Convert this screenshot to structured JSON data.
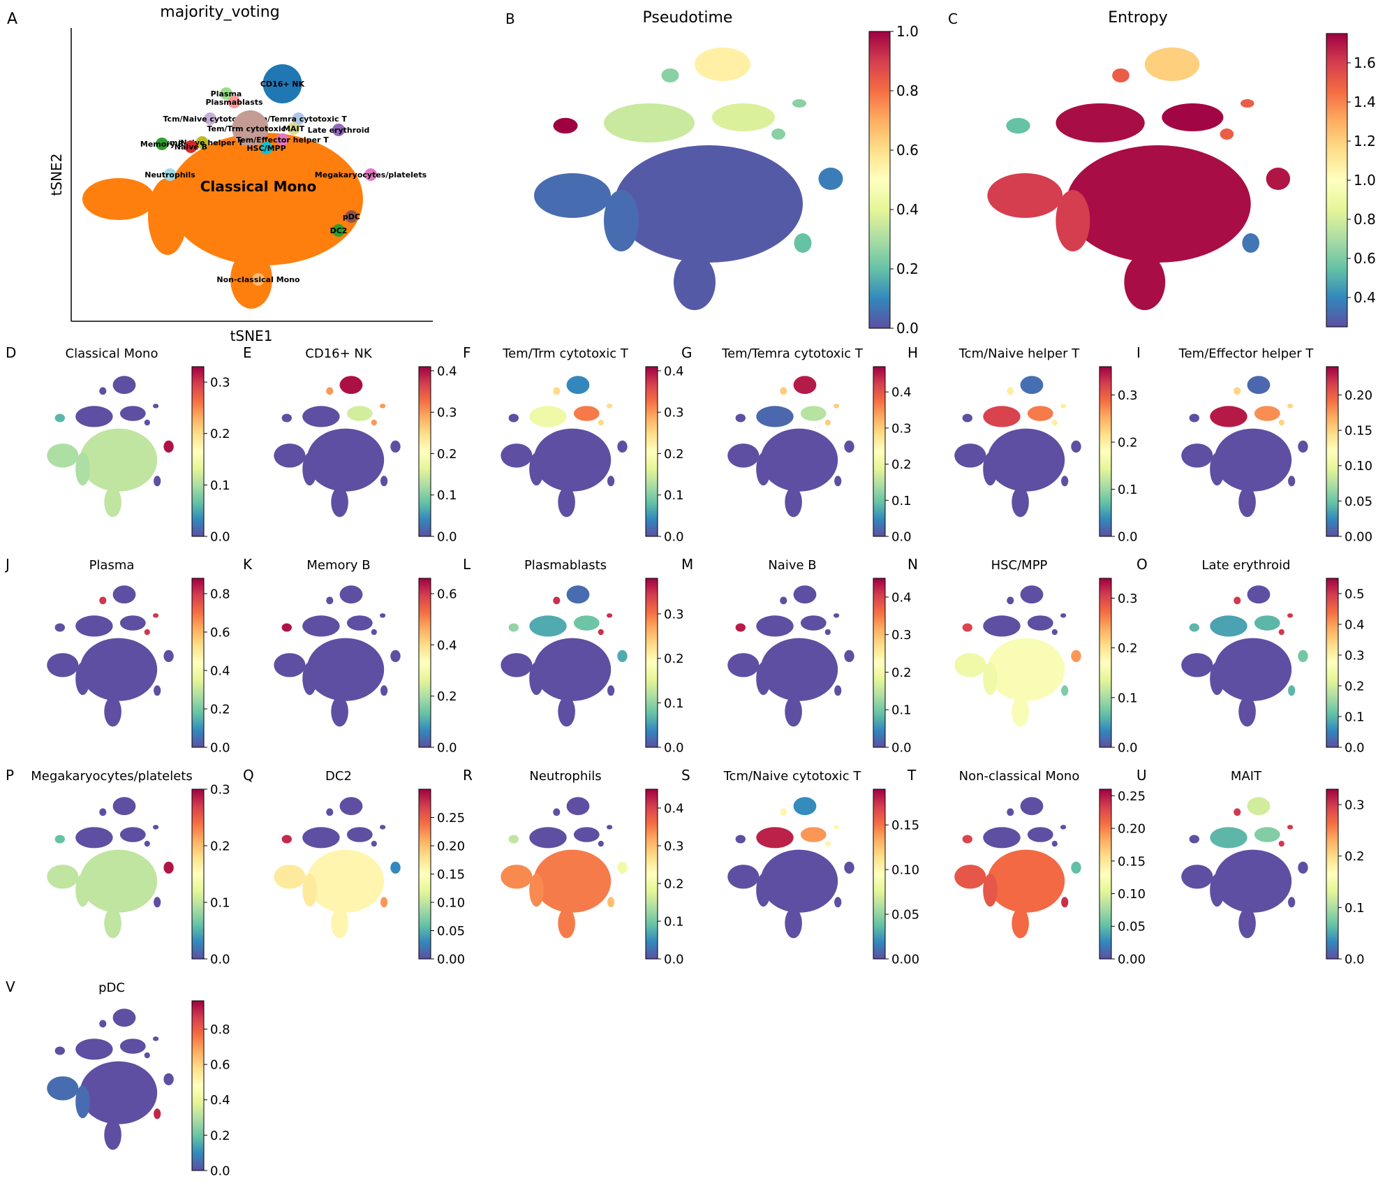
{
  "figure": {
    "colormap": "Spectral_r",
    "colormap_stops": [
      "#5e4fa2",
      "#3288bd",
      "#66c2a5",
      "#abdda4",
      "#e6f598",
      "#ffffbf",
      "#fee08b",
      "#fdae61",
      "#f46d43",
      "#d53e4f",
      "#9e0142"
    ],
    "background_color": "#ffffff",
    "point_colors": {
      "Classical Mono": "#ff7f0e",
      "CD16+ NK": "#1f77b4",
      "Plasma": "#98df8a",
      "Plasmablasts": "#ff9896",
      "Tcm/Naive cytotoxic T": "#c5b0d5",
      "Tem/Trm cytotoxic T": "#c49c94",
      "Tem/Temra cytotoxic T": "#aec7e8",
      "MAIT": "#dbdb8d",
      "Late erythroid": "#9467bd",
      "Tcm/Naive helper T": "#bcbd22",
      "Tem/Effector helper T": "#e377c2",
      "HSC/MPP": "#17becf",
      "Memory B": "#2ca02c",
      "Naive B": "#d62728",
      "Neutrophils": "#9edae5",
      "Megakaryocytes/platelets": "#e377c2",
      "pDC": "#8c564b",
      "DC2": "#2ca02c",
      "Non-classical Mono": "#ffbb78"
    }
  },
  "chart_data": [
    {
      "panel": "A",
      "type": "scatter",
      "title": "majority_voting",
      "xlabel": "tSNE1",
      "ylabel": "tSNE2",
      "clusters": [
        {
          "label": "Classical Mono",
          "x": 0.0,
          "y": 0.0
        },
        {
          "label": "CD16+ NK",
          "x": 0.15,
          "y": 0.75
        },
        {
          "label": "Plasma",
          "x": -0.2,
          "y": 0.68
        },
        {
          "label": "Plasmablasts",
          "x": -0.15,
          "y": 0.62
        },
        {
          "label": "Tcm/Naive cytotoxic T",
          "x": -0.3,
          "y": 0.5
        },
        {
          "label": "Tem/Temra cytotoxic T",
          "x": 0.25,
          "y": 0.5
        },
        {
          "label": "Tem/Trm cytotoxic T",
          "x": -0.05,
          "y": 0.43
        },
        {
          "label": "MAIT",
          "x": 0.22,
          "y": 0.43
        },
        {
          "label": "Late erythroid",
          "x": 0.5,
          "y": 0.42
        },
        {
          "label": "Tem/Effector helper T",
          "x": 0.15,
          "y": 0.35
        },
        {
          "label": "Tcm/Naive helper T",
          "x": -0.35,
          "y": 0.33
        },
        {
          "label": "Memory B",
          "x": -0.6,
          "y": 0.32
        },
        {
          "label": "Naive B",
          "x": -0.42,
          "y": 0.3
        },
        {
          "label": "HSC/MPP",
          "x": 0.05,
          "y": 0.29
        },
        {
          "label": "Neutrophils",
          "x": -0.55,
          "y": 0.1
        },
        {
          "label": "Megakaryocytes/platelets",
          "x": 0.7,
          "y": 0.1
        },
        {
          "label": "pDC",
          "x": 0.58,
          "y": -0.2
        },
        {
          "label": "DC2",
          "x": 0.5,
          "y": -0.3
        },
        {
          "label": "Non-classical Mono",
          "x": 0.0,
          "y": -0.65
        }
      ]
    },
    {
      "panel": "B",
      "type": "scatter",
      "title": "Pseudotime",
      "colorbar_ticks": [
        "0.0",
        "0.2",
        "0.4",
        "0.6",
        "0.8",
        "1.0"
      ],
      "clim": [
        0,
        1.0
      ],
      "color_values": {
        "main": 0.02,
        "left": 0.05,
        "right": 0.08,
        "upper_left": 0.35,
        "upper_mid": 0.38,
        "top": 0.55,
        "far_left": 1.0,
        "small_upper": 0.25,
        "low_right": 0.2
      }
    },
    {
      "panel": "C",
      "type": "scatter",
      "title": "Entropy",
      "colorbar_ticks": [
        "0.4",
        "0.6",
        "0.8",
        "1.0",
        "1.2",
        "1.4",
        "1.6"
      ],
      "clim": [
        0.25,
        1.75
      ],
      "color_values": {
        "main": 1.72,
        "left": 1.6,
        "right": 1.7,
        "upper_left": 1.72,
        "upper_mid": 1.74,
        "top": 1.2,
        "far_left": 0.55,
        "small_upper": 1.5,
        "low_right": 0.35
      }
    },
    {
      "panel": "D",
      "type": "scatter",
      "title": "Classical Mono",
      "colorbar_ticks": [
        "0.0",
        "0.1",
        "0.2",
        "0.3"
      ],
      "clim": [
        0,
        0.33
      ],
      "color_values": {
        "main": 0.11,
        "left": 0.1,
        "right": 0.32,
        "upper_left": 0.0,
        "upper_mid": 0.0,
        "top": 0.0,
        "far_left": 0.06,
        "small_upper": 0.0,
        "low_right": 0.0
      }
    },
    {
      "panel": "E",
      "type": "scatter",
      "title": "CD16+ NK",
      "colorbar_ticks": [
        "0.0",
        "0.1",
        "0.2",
        "0.3",
        "0.4"
      ],
      "clim": [
        0,
        0.41
      ],
      "color_values": {
        "main": 0.0,
        "left": 0.0,
        "right": 0.0,
        "upper_left": 0.0,
        "upper_mid": 0.15,
        "top": 0.4,
        "far_left": 0.0,
        "small_upper": 0.3,
        "low_right": 0.0
      }
    },
    {
      "panel": "F",
      "type": "scatter",
      "title": "Tem/Trm cytotoxic T",
      "colorbar_ticks": [
        "0.0",
        "0.1",
        "0.2",
        "0.3",
        "0.4"
      ],
      "clim": [
        0,
        0.41
      ],
      "color_values": {
        "main": 0.0,
        "left": 0.0,
        "right": 0.0,
        "upper_left": 0.18,
        "upper_mid": 0.32,
        "top": 0.04,
        "far_left": 0.0,
        "small_upper": 0.25,
        "low_right": 0.0
      }
    },
    {
      "panel": "G",
      "type": "scatter",
      "title": "Tem/Temra cytotoxic T",
      "colorbar_ticks": [
        "0.0",
        "0.1",
        "0.2",
        "0.3",
        "0.4"
      ],
      "clim": [
        0,
        0.47
      ],
      "color_values": {
        "main": 0.0,
        "left": 0.0,
        "right": 0.0,
        "upper_left": 0.02,
        "upper_mid": 0.15,
        "top": 0.45,
        "far_left": 0.0,
        "small_upper": 0.3,
        "low_right": 0.0
      }
    },
    {
      "panel": "H",
      "type": "scatter",
      "title": "Tcm/Naive helper T",
      "colorbar_ticks": [
        "0.0",
        "0.1",
        "0.2",
        "0.3"
      ],
      "clim": [
        0,
        0.36
      ],
      "color_values": {
        "main": 0.0,
        "left": 0.0,
        "right": 0.0,
        "upper_left": 0.32,
        "upper_mid": 0.28,
        "top": 0.02,
        "far_left": 0.0,
        "small_upper": 0.2,
        "low_right": 0.0
      }
    },
    {
      "panel": "I",
      "type": "scatter",
      "title": "Tem/Effector helper T",
      "colorbar_ticks": [
        "0.00",
        "0.05",
        "0.10",
        "0.15",
        "0.20"
      ],
      "clim": [
        0,
        0.24
      ],
      "color_values": {
        "main": 0.0,
        "left": 0.0,
        "right": 0.0,
        "upper_left": 0.23,
        "upper_mid": 0.18,
        "top": 0.01,
        "far_left": 0.0,
        "small_upper": 0.15,
        "low_right": 0.0
      }
    },
    {
      "panel": "J",
      "type": "scatter",
      "title": "Plasma",
      "colorbar_ticks": [
        "0.0",
        "0.2",
        "0.4",
        "0.6",
        "0.8"
      ],
      "clim": [
        0,
        0.88
      ],
      "color_values": {
        "main": 0.0,
        "left": 0.0,
        "right": 0.0,
        "upper_left": 0.0,
        "upper_mid": 0.0,
        "top": 0.0,
        "far_left": 0.0,
        "small_upper": 0.8,
        "low_right": 0.0
      }
    },
    {
      "panel": "K",
      "type": "scatter",
      "title": "Memory B",
      "colorbar_ticks": [
        "0.0",
        "0.2",
        "0.4",
        "0.6"
      ],
      "clim": [
        0,
        0.66
      ],
      "color_values": {
        "main": 0.0,
        "left": 0.0,
        "right": 0.0,
        "upper_left": 0.0,
        "upper_mid": 0.0,
        "top": 0.0,
        "far_left": 0.64,
        "small_upper": 0.0,
        "low_right": 0.0
      }
    },
    {
      "panel": "L",
      "type": "scatter",
      "title": "Plasmablasts",
      "colorbar_ticks": [
        "0.0",
        "0.1",
        "0.2",
        "0.3"
      ],
      "clim": [
        0,
        0.38
      ],
      "color_values": {
        "main": 0.0,
        "left": 0.0,
        "right": 0.06,
        "upper_left": 0.06,
        "upper_mid": 0.08,
        "top": 0.02,
        "far_left": 0.1,
        "small_upper": 0.35,
        "low_right": 0.0
      }
    },
    {
      "panel": "M",
      "type": "scatter",
      "title": "Naive B",
      "colorbar_ticks": [
        "0.0",
        "0.1",
        "0.2",
        "0.3",
        "0.4"
      ],
      "clim": [
        0,
        0.45
      ],
      "color_values": {
        "main": 0.0,
        "left": 0.0,
        "right": 0.0,
        "upper_left": 0.0,
        "upper_mid": 0.0,
        "top": 0.0,
        "far_left": 0.43,
        "small_upper": 0.0,
        "low_right": 0.0
      }
    },
    {
      "panel": "N",
      "type": "scatter",
      "title": "HSC/MPP",
      "colorbar_ticks": [
        "0.0",
        "0.1",
        "0.2",
        "0.3"
      ],
      "clim": [
        0,
        0.34
      ],
      "color_values": {
        "main": 0.16,
        "left": 0.15,
        "right": 0.25,
        "upper_left": 0.0,
        "upper_mid": 0.0,
        "top": 0.0,
        "far_left": 0.3,
        "small_upper": 0.0,
        "low_right": 0.08
      }
    },
    {
      "panel": "O",
      "type": "scatter",
      "title": "Late erythroid",
      "colorbar_ticks": [
        "0.0",
        "0.1",
        "0.2",
        "0.3",
        "0.4",
        "0.5"
      ],
      "clim": [
        0,
        0.55
      ],
      "color_values": {
        "main": 0.0,
        "left": 0.0,
        "right": 0.12,
        "upper_left": 0.08,
        "upper_mid": 0.1,
        "top": 0.0,
        "far_left": 0.1,
        "small_upper": 0.5,
        "low_right": 0.1
      }
    },
    {
      "panel": "P",
      "type": "scatter",
      "title": "Megakaryocytes/platelets",
      "colorbar_ticks": [
        "0.0",
        "0.1",
        "0.2",
        "0.3"
      ],
      "clim": [
        0,
        0.3
      ],
      "color_values": {
        "main": 0.1,
        "left": 0.1,
        "right": 0.29,
        "upper_left": 0.0,
        "upper_mid": 0.0,
        "top": 0.0,
        "far_left": 0.06,
        "small_upper": 0.0,
        "low_right": 0.0
      }
    },
    {
      "panel": "Q",
      "type": "scatter",
      "title": "DC2",
      "colorbar_ticks": [
        "0.00",
        "0.05",
        "0.10",
        "0.15",
        "0.20",
        "0.25"
      ],
      "clim": [
        0,
        0.3
      ],
      "color_values": {
        "main": 0.16,
        "left": 0.17,
        "right": 0.03,
        "upper_left": 0.0,
        "upper_mid": 0.0,
        "top": 0.0,
        "far_left": 0.28,
        "small_upper": 0.0,
        "low_right": 0.22
      }
    },
    {
      "panel": "R",
      "type": "scatter",
      "title": "Neutrophils",
      "colorbar_ticks": [
        "0.0",
        "0.1",
        "0.2",
        "0.3",
        "0.4"
      ],
      "clim": [
        0,
        0.45
      ],
      "color_values": {
        "main": 0.35,
        "left": 0.34,
        "right": 0.2,
        "upper_left": 0.0,
        "upper_mid": 0.0,
        "top": 0.0,
        "far_left": 0.15,
        "small_upper": 0.0,
        "low_right": 0.3
      }
    },
    {
      "panel": "S",
      "type": "scatter",
      "title": "Tcm/Naive cytotoxic T",
      "colorbar_ticks": [
        "0.00",
        "0.05",
        "0.10",
        "0.15"
      ],
      "clim": [
        0,
        0.19
      ],
      "color_values": {
        "main": 0.0,
        "left": 0.0,
        "right": 0.0,
        "upper_left": 0.18,
        "upper_mid": 0.14,
        "top": 0.02,
        "far_left": 0.0,
        "small_upper": 0.1,
        "low_right": 0.0
      }
    },
    {
      "panel": "T",
      "type": "scatter",
      "title": "Non-classical Mono",
      "colorbar_ticks": [
        "0.00",
        "0.05",
        "0.10",
        "0.15",
        "0.20",
        "0.25"
      ],
      "clim": [
        0,
        0.26
      ],
      "color_values": {
        "main": 0.21,
        "left": 0.22,
        "right": 0.05,
        "upper_left": 0.0,
        "upper_mid": 0.0,
        "top": 0.0,
        "far_left": 0.23,
        "small_upper": 0.0,
        "low_right": 0.24
      }
    },
    {
      "panel": "U",
      "type": "scatter",
      "title": "MAIT",
      "colorbar_ticks": [
        "0.0",
        "0.1",
        "0.2",
        "0.3"
      ],
      "clim": [
        0,
        0.33
      ],
      "color_values": {
        "main": 0.0,
        "left": 0.0,
        "right": 0.0,
        "upper_left": 0.06,
        "upper_mid": 0.08,
        "top": 0.12,
        "far_left": 0.0,
        "small_upper": 0.3,
        "low_right": 0.0
      }
    },
    {
      "panel": "V",
      "type": "scatter",
      "title": "pDC",
      "colorbar_ticks": [
        "0.0",
        "0.2",
        "0.4",
        "0.6",
        "0.8"
      ],
      "clim": [
        0,
        0.96
      ],
      "color_values": {
        "main": 0.0,
        "left": 0.05,
        "right": 0.0,
        "upper_left": 0.0,
        "upper_mid": 0.0,
        "top": 0.0,
        "far_left": 0.0,
        "small_upper": 0.0,
        "low_right": 0.9
      }
    }
  ]
}
